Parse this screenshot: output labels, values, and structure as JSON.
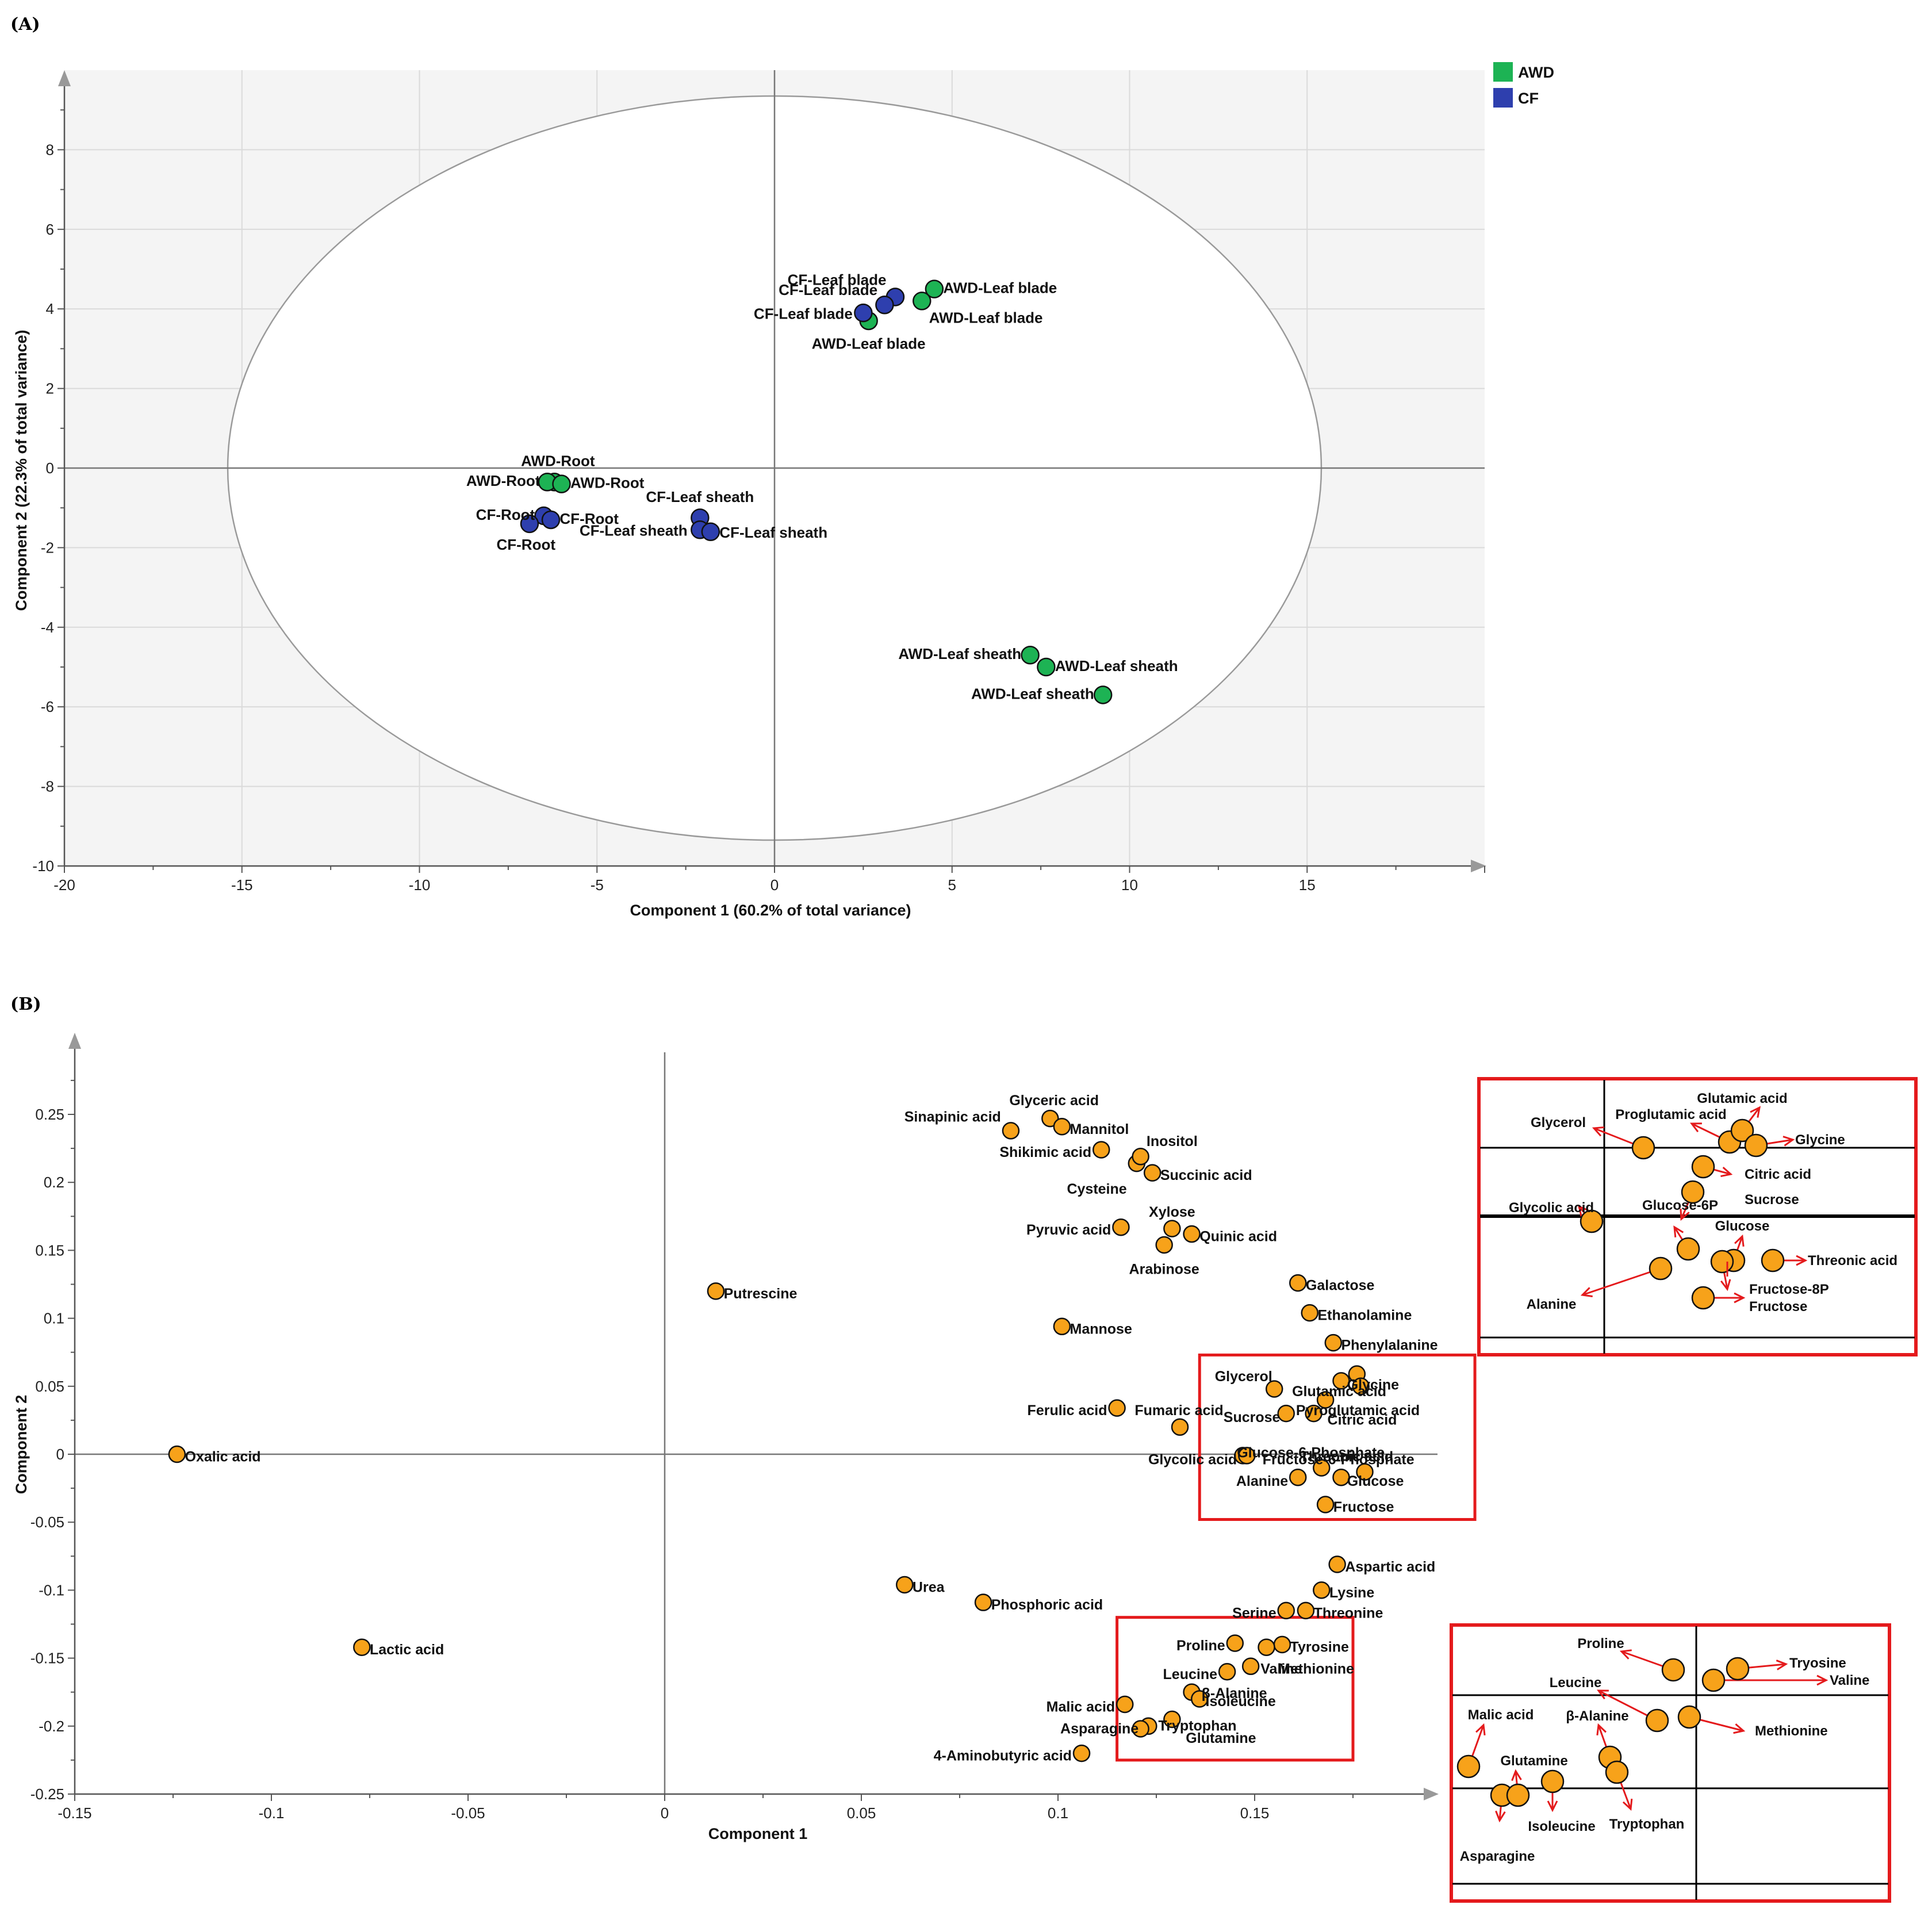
{
  "chart_data": [
    {
      "panel": "(A)",
      "type": "scatter",
      "xlabel": "Component 1 (60.2% of total variance)",
      "ylabel": "Component 2 (22.3% of total variance)",
      "xlim": [
        -20,
        20
      ],
      "ylim": [
        -10,
        10
      ],
      "xticks": [
        -20,
        -15,
        -10,
        -5,
        0,
        5,
        10,
        15
      ],
      "yticks": [
        -10,
        -8,
        -6,
        -4,
        -2,
        0,
        2,
        4,
        6,
        8
      ],
      "ellipse": {
        "cx": 0,
        "cy": 0,
        "rx": 15.4,
        "ry": 9.35
      },
      "legend": [
        {
          "name": "AWD",
          "color": "#1db354"
        },
        {
          "name": "CF",
          "color": "#2e3fae"
        }
      ],
      "points": [
        {
          "x": 4.5,
          "y": 4.5,
          "group": "AWD",
          "label": "AWD-Leaf blade",
          "lx": 4.75,
          "ly": 4.4,
          "anchor": "start"
        },
        {
          "x": 4.15,
          "y": 4.2,
          "group": "AWD",
          "label": "AWD-Leaf blade",
          "lx": 4.35,
          "ly": 3.65,
          "anchor": "start"
        },
        {
          "x": 2.65,
          "y": 3.7,
          "group": "AWD",
          "label": "AWD-Leaf blade",
          "lx": 2.65,
          "ly": 3.0,
          "anchor": "middle"
        },
        {
          "x": 3.4,
          "y": 4.3,
          "group": "CF",
          "label": "CF-Leaf blade",
          "lx": 3.15,
          "ly": 4.6,
          "anchor": "end"
        },
        {
          "x": 3.1,
          "y": 4.1,
          "group": "CF",
          "label": "CF-Leaf blade",
          "lx": 2.9,
          "ly": 4.35,
          "anchor": "end"
        },
        {
          "x": 2.5,
          "y": 3.9,
          "group": "CF",
          "label": "CF-Leaf blade",
          "lx": 2.2,
          "ly": 3.75,
          "anchor": "end"
        },
        {
          "x": -6.2,
          "y": -0.35,
          "group": "AWD",
          "label": "AWD-Root",
          "lx": -6.1,
          "ly": 0.05,
          "anchor": "middle"
        },
        {
          "x": -6.4,
          "y": -0.35,
          "group": "AWD",
          "label": "AWD-Root",
          "lx": -6.6,
          "ly": -0.45,
          "anchor": "end"
        },
        {
          "x": -6.0,
          "y": -0.4,
          "group": "AWD",
          "label": "AWD-Root",
          "lx": -5.75,
          "ly": -0.5,
          "anchor": "start"
        },
        {
          "x": -6.5,
          "y": -1.2,
          "group": "CF",
          "label": "CF-Root",
          "lx": -6.75,
          "ly": -1.3,
          "anchor": "end"
        },
        {
          "x": -6.3,
          "y": -1.3,
          "group": "CF",
          "label": "CF-Root",
          "lx": -6.05,
          "ly": -1.4,
          "anchor": "start"
        },
        {
          "x": -6.9,
          "y": -1.4,
          "group": "CF",
          "label": "CF-Root",
          "lx": -7.0,
          "ly": -2.05,
          "anchor": "middle"
        },
        {
          "x": -2.1,
          "y": -1.25,
          "group": "CF",
          "label": "CF-Leaf sheath",
          "lx": -2.1,
          "ly": -0.85,
          "anchor": "middle"
        },
        {
          "x": -2.1,
          "y": -1.55,
          "group": "CF",
          "label": "CF-Leaf sheath",
          "lx": -2.45,
          "ly": -1.7,
          "anchor": "end"
        },
        {
          "x": -1.8,
          "y": -1.6,
          "group": "CF",
          "label": "CF-Leaf sheath",
          "lx": -1.55,
          "ly": -1.75,
          "anchor": "start"
        },
        {
          "x": 7.2,
          "y": -4.7,
          "group": "AWD",
          "label": "AWD-Leaf sheath",
          "lx": 6.95,
          "ly": -4.8,
          "anchor": "end"
        },
        {
          "x": 7.65,
          "y": -5.0,
          "group": "AWD",
          "label": "AWD-Leaf sheath",
          "lx": 7.9,
          "ly": -5.1,
          "anchor": "start"
        },
        {
          "x": 9.25,
          "y": -5.7,
          "group": "AWD",
          "label": "AWD-Leaf sheath",
          "lx": 9.0,
          "ly": -5.8,
          "anchor": "end"
        }
      ]
    },
    {
      "panel": "(B)",
      "type": "scatter",
      "xlabel": "Component 1",
      "ylabel": "Component 2",
      "xlim": [
        -0.15,
        0.2
      ],
      "ylim": [
        -0.25,
        0.3
      ],
      "xticks": [
        -0.15,
        -0.1,
        -0.05,
        0,
        0.05,
        0.1,
        0.15
      ],
      "yticks": [
        -0.25,
        -0.2,
        -0.15,
        -0.1,
        -0.05,
        0,
        0.05,
        0.1,
        0.15,
        0.2,
        0.25
      ],
      "point_color": "#f7a21a",
      "points": [
        {
          "label": "Oxalic acid",
          "x": -0.124,
          "y": 0.0
        },
        {
          "label": "Lactic acid",
          "x": -0.077,
          "y": -0.142
        },
        {
          "label": "Putrescine",
          "x": 0.013,
          "y": 0.12
        },
        {
          "label": "Urea",
          "x": 0.061,
          "y": -0.096
        },
        {
          "label": "Phosphoric acid",
          "x": 0.081,
          "y": -0.109
        },
        {
          "label": "Sinapinic acid",
          "x": 0.088,
          "y": 0.238
        },
        {
          "label": "Glyceric acid",
          "x": 0.098,
          "y": 0.247
        },
        {
          "label": "Mannitol",
          "x": 0.101,
          "y": 0.241
        },
        {
          "label": "Mannose",
          "x": 0.101,
          "y": 0.094
        },
        {
          "label": "Shikimic acid",
          "x": 0.111,
          "y": 0.224
        },
        {
          "label": "Cysteine",
          "x": 0.12,
          "y": 0.214
        },
        {
          "label": "Inositol",
          "x": 0.121,
          "y": 0.219
        },
        {
          "label": "Succinic acid",
          "x": 0.124,
          "y": 0.207
        },
        {
          "label": "Pyruvic acid",
          "x": 0.116,
          "y": 0.167
        },
        {
          "label": "Xylose",
          "x": 0.129,
          "y": 0.166
        },
        {
          "label": "Arabinose",
          "x": 0.127,
          "y": 0.154
        },
        {
          "label": "Quinic acid",
          "x": 0.134,
          "y": 0.162
        },
        {
          "label": "Ferulic acid",
          "x": 0.115,
          "y": 0.034
        },
        {
          "label": "Fumaric acid",
          "x": 0.131,
          "y": 0.02
        },
        {
          "label": "Galactose",
          "x": 0.161,
          "y": 0.126
        },
        {
          "label": "Ethanolamine",
          "x": 0.164,
          "y": 0.104
        },
        {
          "label": "Phenylalanine",
          "x": 0.17,
          "y": 0.082
        },
        {
          "label": "Glycerol",
          "x": 0.155,
          "y": 0.048
        },
        {
          "label": "Glutamic acid",
          "x": 0.176,
          "y": 0.059
        },
        {
          "label": "Glycine",
          "x": 0.177,
          "y": 0.05
        },
        {
          "label": "Proglutamic acid",
          "x": 0.172,
          "y": 0.054
        },
        {
          "label": "Pyroglutamic acid",
          "x": 0.168,
          "y": 0.04
        },
        {
          "label": "Citric acid",
          "x": 0.165,
          "y": 0.03
        },
        {
          "label": "Sucrose",
          "x": 0.158,
          "y": 0.03
        },
        {
          "label": "Glucose-6-Phosphate",
          "x": 0.147,
          "y": -0.001
        },
        {
          "label": "Glycolic acid",
          "x": 0.148,
          "y": -0.001
        },
        {
          "label": "Threonic acid",
          "x": 0.178,
          "y": -0.013
        },
        {
          "label": "Fructose-6-Phosphate",
          "x": 0.167,
          "y": -0.01
        },
        {
          "label": "Glucose",
          "x": 0.172,
          "y": -0.017
        },
        {
          "label": "Alanine",
          "x": 0.161,
          "y": -0.017
        },
        {
          "label": "Fructose",
          "x": 0.168,
          "y": -0.037
        },
        {
          "label": "Aspartic acid",
          "x": 0.171,
          "y": -0.081
        },
        {
          "label": "Lysine",
          "x": 0.167,
          "y": -0.1
        },
        {
          "label": "Serine",
          "x": 0.158,
          "y": -0.115
        },
        {
          "label": "Threonine",
          "x": 0.163,
          "y": -0.115
        },
        {
          "label": "Proline",
          "x": 0.145,
          "y": -0.139
        },
        {
          "label": "Tyrosine",
          "x": 0.157,
          "y": -0.14
        },
        {
          "label": "Valine",
          "x": 0.153,
          "y": -0.142
        },
        {
          "label": "Methionine",
          "x": 0.149,
          "y": -0.156
        },
        {
          "label": "Leucine",
          "x": 0.143,
          "y": -0.16
        },
        {
          "label": "β-Alanine",
          "x": 0.134,
          "y": -0.175
        },
        {
          "label": "Isoleucine",
          "x": 0.136,
          "y": -0.18
        },
        {
          "label": "Malic acid",
          "x": 0.117,
          "y": -0.184
        },
        {
          "label": "Tryptophan",
          "x": 0.129,
          "y": -0.195
        },
        {
          "label": "Asparagine",
          "x": 0.123,
          "y": -0.2
        },
        {
          "label": "Glutamine",
          "x": 0.121,
          "y": -0.202
        },
        {
          "label": "4-Aminobutyric acid",
          "x": 0.106,
          "y": -0.22
        }
      ],
      "labels": [
        {
          "text": "Oxalic acid",
          "x": -0.122,
          "y": -0.0015,
          "anchor": "start"
        },
        {
          "text": "Lactic acid",
          "x": -0.075,
          "y": -0.1435,
          "anchor": "start"
        },
        {
          "text": "Putrescine",
          "x": 0.015,
          "y": 0.1185,
          "anchor": "start"
        },
        {
          "text": "Urea",
          "x": 0.063,
          "y": -0.0975,
          "anchor": "start"
        },
        {
          "text": "Phosphoric acid",
          "x": 0.083,
          "y": -0.1105,
          "anchor": "start"
        },
        {
          "text": "Sinapinic acid",
          "x": 0.0855,
          "y": 0.2485,
          "anchor": "end"
        },
        {
          "text": "Glyceric acid",
          "x": 0.099,
          "y": 0.2605,
          "anchor": "middle"
        },
        {
          "text": "Mannitol",
          "x": 0.103,
          "y": 0.2395,
          "anchor": "start"
        },
        {
          "text": "Mannose",
          "x": 0.103,
          "y": 0.0925,
          "anchor": "start"
        },
        {
          "text": "Shikimic acid",
          "x": 0.1085,
          "y": 0.2225,
          "anchor": "end"
        },
        {
          "text": "Cysteine",
          "x": 0.1175,
          "y": 0.1955,
          "anchor": "end"
        },
        {
          "text": "Inositol",
          "x": 0.1225,
          "y": 0.2305,
          "anchor": "start"
        },
        {
          "text": "Succinic acid",
          "x": 0.126,
          "y": 0.2055,
          "anchor": "start"
        },
        {
          "text": "Pyruvic acid",
          "x": 0.1135,
          "y": 0.1655,
          "anchor": "end"
        },
        {
          "text": "Xylose",
          "x": 0.129,
          "y": 0.1785,
          "anchor": "middle"
        },
        {
          "text": "Arabinose",
          "x": 0.127,
          "y": 0.1365,
          "anchor": "middle"
        },
        {
          "text": "Quinic acid",
          "x": 0.136,
          "y": 0.1605,
          "anchor": "start"
        },
        {
          "text": "Ferulic acid",
          "x": 0.1125,
          "y": 0.0325,
          "anchor": "end"
        },
        {
          "text": "Fumaric acid",
          "x": 0.1195,
          "y": 0.0325,
          "anchor": "start"
        },
        {
          "text": "Galactose",
          "x": 0.163,
          "y": 0.1245,
          "anchor": "start"
        },
        {
          "text": "Ethanolamine",
          "x": 0.166,
          "y": 0.1025,
          "anchor": "start"
        },
        {
          "text": "Phenylalanine",
          "x": 0.172,
          "y": 0.0805,
          "anchor": "start"
        },
        {
          "text": "Glycerol",
          "x": 0.1545,
          "y": 0.0575,
          "anchor": "end"
        },
        {
          "text": "Glutamic acid",
          "x": 0.1715,
          "y": 0.0465,
          "anchor": "middle"
        },
        {
          "text": "Glycine",
          "x": 0.1735,
          "y": 0.0515,
          "anchor": "start"
        },
        {
          "text": "Pyroglutamic acid",
          "x": 0.1605,
          "y": 0.0325,
          "anchor": "start"
        },
        {
          "text": "Citric acid",
          "x": 0.1685,
          "y": 0.0255,
          "anchor": "start"
        },
        {
          "text": "Sucrose",
          "x": 0.1565,
          "y": 0.0275,
          "anchor": "end"
        },
        {
          "text": "Glucose-6-Phosphate",
          "x": 0.1455,
          "y": 0.0015,
          "anchor": "start"
        },
        {
          "text": "Threonic acid",
          "x": 0.1615,
          "y": -0.0015,
          "anchor": "start"
        },
        {
          "text": "Fructose-6-Phosphate",
          "x": 0.152,
          "y": -0.0035,
          "anchor": "start"
        },
        {
          "text": "Glycolic acid",
          "x": 0.1455,
          "y": -0.0035,
          "anchor": "end"
        },
        {
          "text": "Glucose",
          "x": 0.1735,
          "y": -0.0195,
          "anchor": "start"
        },
        {
          "text": "Alanine",
          "x": 0.1585,
          "y": -0.0195,
          "anchor": "end"
        },
        {
          "text": "Fructose",
          "x": 0.17,
          "y": -0.0385,
          "anchor": "start"
        },
        {
          "text": "Aspartic acid",
          "x": 0.173,
          "y": -0.0825,
          "anchor": "start"
        },
        {
          "text": "Lysine",
          "x": 0.169,
          "y": -0.1015,
          "anchor": "start"
        },
        {
          "text": "Serine",
          "x": 0.1555,
          "y": -0.1165,
          "anchor": "end"
        },
        {
          "text": "Threonine",
          "x": 0.165,
          "y": -0.1165,
          "anchor": "start"
        },
        {
          "text": "Proline",
          "x": 0.1425,
          "y": -0.1405,
          "anchor": "end"
        },
        {
          "text": "Tyrosine",
          "x": 0.159,
          "y": -0.1415,
          "anchor": "start"
        },
        {
          "text": "Valine",
          "x": 0.1515,
          "y": -0.1575,
          "anchor": "start"
        },
        {
          "text": "Methionine",
          "x": 0.156,
          "y": -0.1575,
          "anchor": "start"
        },
        {
          "text": "Leucine",
          "x": 0.1405,
          "y": -0.1615,
          "anchor": "end"
        },
        {
          "text": "β-Alanine",
          "x": 0.1365,
          "y": -0.1755,
          "anchor": "start"
        },
        {
          "text": "Isoleucine",
          "x": 0.1375,
          "y": -0.1815,
          "anchor": "start"
        },
        {
          "text": "Malic acid",
          "x": 0.1145,
          "y": -0.1855,
          "anchor": "end"
        },
        {
          "text": "Tryptophan",
          "x": 0.1255,
          "y": -0.1995,
          "anchor": "start"
        },
        {
          "text": "Asparagine",
          "x": 0.1205,
          "y": -0.2015,
          "anchor": "end"
        },
        {
          "text": "Glutamine",
          "x": 0.1325,
          "y": -0.2085,
          "anchor": "start"
        },
        {
          "text": "4-Aminobutyric acid",
          "x": 0.1035,
          "y": -0.2215,
          "anchor": "end"
        }
      ],
      "highlight_boxes": [
        {
          "x1": 0.136,
          "x2": 0.206,
          "y1": -0.048,
          "y2": 0.073
        },
        {
          "x1": 0.115,
          "x2": 0.175,
          "y1": -0.225,
          "y2": -0.12
        }
      ],
      "zooms": [
        {
          "points": [
            {
              "label": "Glycerol"
            },
            {
              "label": "Proglutamic acid"
            },
            {
              "label": "Glutamic acid"
            },
            {
              "label": "Glycine"
            },
            {
              "label": "Citric acid"
            },
            {
              "label": "Sucrose"
            },
            {
              "label": "Glycolic acid"
            },
            {
              "label": "Glucose-6P"
            },
            {
              "label": "Glucose"
            },
            {
              "label": "Threonic acid"
            },
            {
              "label": "Fructose-8P"
            },
            {
              "label": "Alanine"
            },
            {
              "label": "Fructose"
            }
          ],
          "labels": [
            "Glutamic acid",
            "Glycerol",
            "Proglutamic acid",
            "Glycine",
            "Citric acid",
            "Sucrose",
            "Glycolic acid",
            "Glucose-6P",
            "Glucose",
            "Threonic acid",
            "Fructose-8P",
            "Alanine",
            "Fructose"
          ]
        },
        {
          "points": [
            {
              "label": "Proline"
            },
            {
              "label": "Tryosine"
            },
            {
              "label": "Valine"
            },
            {
              "label": "Leucine"
            },
            {
              "label": "Methionine"
            },
            {
              "label": "Malic acid"
            },
            {
              "label": "β-Alanine"
            },
            {
              "label": "Tryptophan"
            },
            {
              "label": "Isoleucine"
            },
            {
              "label": "Glutamine"
            },
            {
              "label": "Asparagine"
            }
          ],
          "labels": [
            "Proline",
            "Tryosine",
            "Valine",
            "Leucine",
            "Methionine",
            "Malic acid",
            "β-Alanine",
            "Tryptophan",
            "Isoleucine",
            "Glutamine",
            "Asparagine"
          ]
        }
      ]
    }
  ]
}
